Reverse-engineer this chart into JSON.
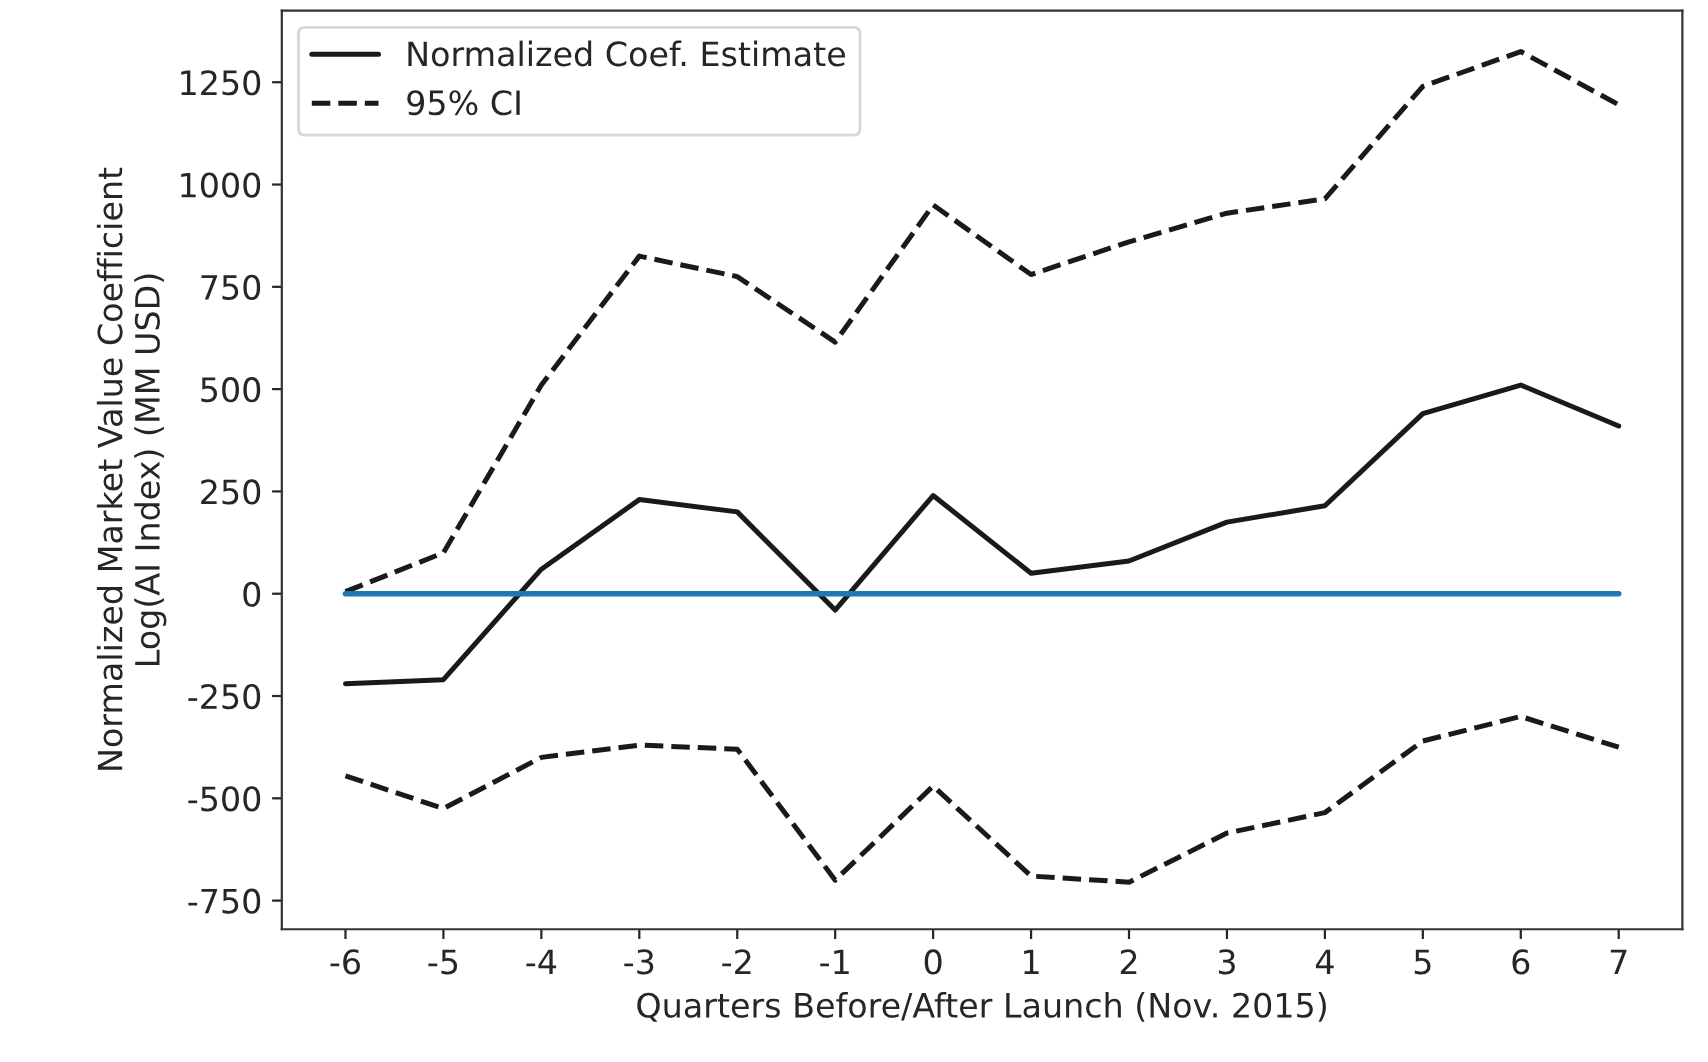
{
  "chart_data": {
    "type": "line",
    "xlabel": "Quarters Before/After Launch (Nov. 2015)",
    "ylabel": "Normalized Market Value Coefficient\nLog(AI Index) (MM USD)",
    "x": [
      -6,
      -5,
      -4,
      -3,
      -2,
      -1,
      0,
      1,
      2,
      3,
      4,
      5,
      6,
      7
    ],
    "series": [
      {
        "name": "Normalized Coef. Estimate",
        "color": "#1a1a1a",
        "line_style": "solid",
        "values": [
          -220,
          -210,
          60,
          230,
          200,
          -40,
          240,
          50,
          80,
          175,
          215,
          440,
          510,
          410
        ]
      },
      {
        "name": "95% CI",
        "color": "#1a1a1a",
        "line_style": "dashed",
        "values": [
          5,
          100,
          510,
          825,
          775,
          615,
          950,
          780,
          860,
          930,
          965,
          1240,
          1325,
          1195
        ]
      },
      {
        "color": "#1a1a1a",
        "line_style": "dashed",
        "values": [
          -445,
          -525,
          -400,
          -370,
          -380,
          -700,
          -470,
          -690,
          -705,
          -585,
          -535,
          -360,
          -300,
          -375
        ]
      },
      {
        "color": "#1f77b4",
        "line_style": "solid",
        "values": [
          0,
          0,
          0,
          0,
          0,
          0,
          0,
          0,
          0,
          0,
          0,
          0,
          0,
          0
        ]
      }
    ],
    "xlim": [
      -6.65,
      7.65
    ],
    "ylim": [
      -820,
      1425
    ],
    "xticks": [
      -6,
      -5,
      -4,
      -3,
      -2,
      -1,
      0,
      1,
      2,
      3,
      4,
      5,
      6,
      7
    ],
    "yticks": [
      -750,
      -500,
      -250,
      0,
      250,
      500,
      750,
      1000,
      1250
    ],
    "grid": false,
    "legend": "top left",
    "marker": "none"
  }
}
